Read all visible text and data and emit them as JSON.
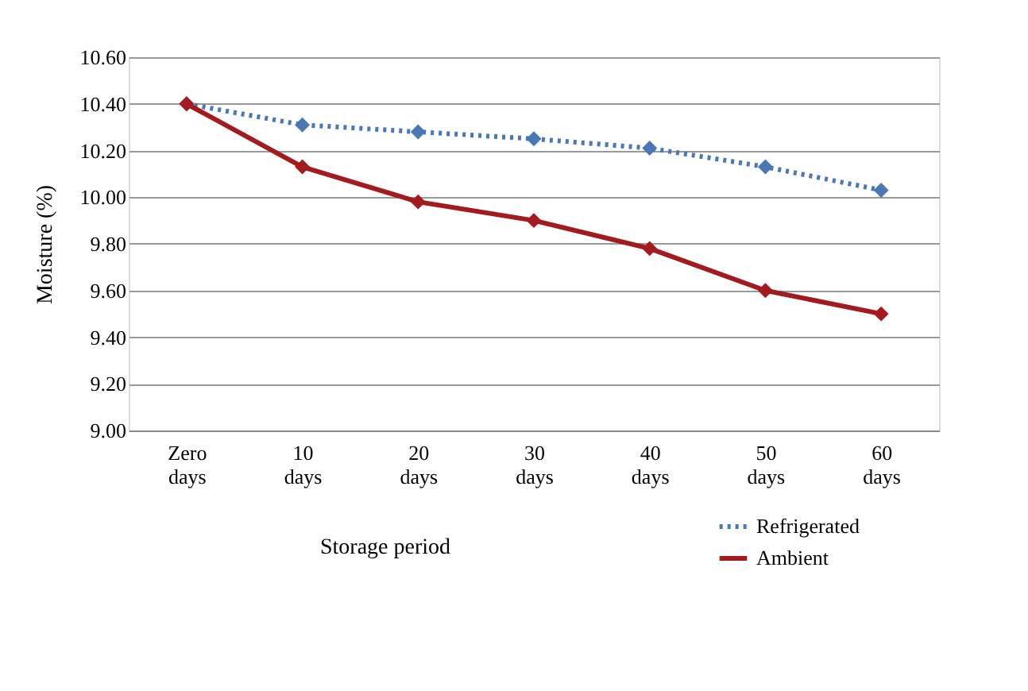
{
  "chart_data": {
    "type": "line",
    "xlabel": "Storage period",
    "ylabel": "Moisture (%)",
    "categories": [
      "Zero days",
      "10 days",
      "20 days",
      "30 days",
      "40 days",
      "50 days",
      "60 days"
    ],
    "series": [
      {
        "name": "Refrigerated",
        "color": "#4a78b4",
        "line_style": "dotted",
        "values": [
          10.4,
          10.31,
          10.28,
          10.25,
          10.21,
          10.13,
          10.03
        ]
      },
      {
        "name": "Ambient",
        "color": "#a31a1f",
        "line_style": "solid",
        "values": [
          10.4,
          10.13,
          9.98,
          9.9,
          9.78,
          9.6,
          9.5
        ]
      }
    ],
    "ylim": [
      9.0,
      10.6
    ],
    "yticks": [
      {
        "value": 9.0,
        "label": "9.00"
      },
      {
        "value": 9.2,
        "label": "9.20"
      },
      {
        "value": 9.4,
        "label": "9.40"
      },
      {
        "value": 9.6,
        "label": "9.60"
      },
      {
        "value": 9.8,
        "label": "9.80"
      },
      {
        "value": 10.0,
        "label": "10.00"
      },
      {
        "value": 10.2,
        "label": "10.20"
      },
      {
        "value": 10.4,
        "label": "10.40"
      },
      {
        "value": 10.6,
        "label": "10.60"
      }
    ],
    "grid": "y",
    "legend": "bottom right",
    "marker": "diamond"
  }
}
